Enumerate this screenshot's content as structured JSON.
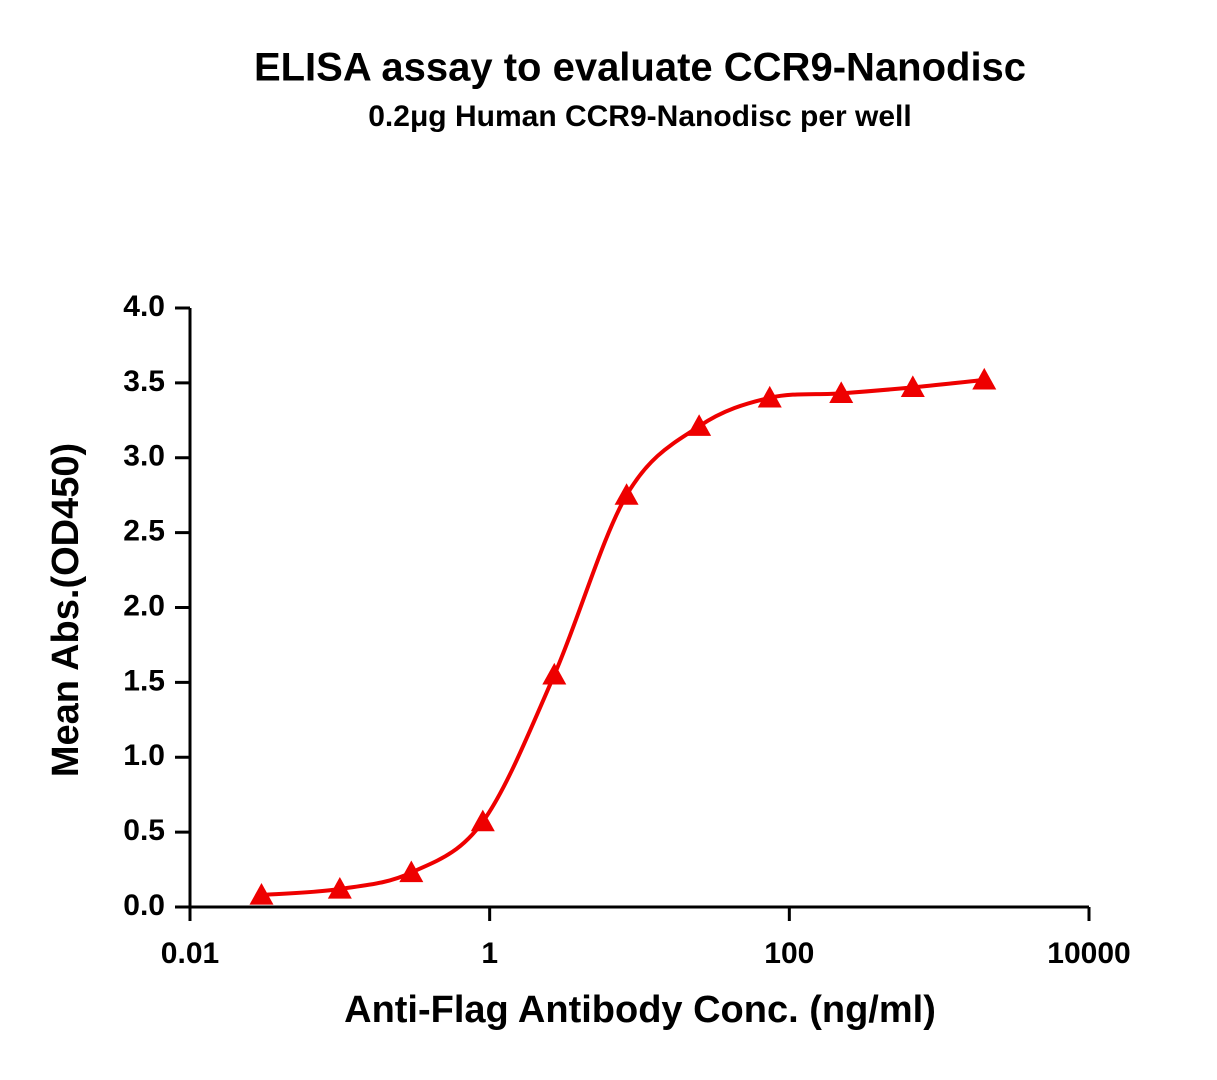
{
  "chart_data": {
    "type": "line",
    "title": "ELISA assay to evaluate CCR9-Nanodisc",
    "subtitle": "0.2μg Human CCR9-Nanodisc per well",
    "x_label": "Anti-Flag Antibody Conc. (ng/ml)",
    "y_label": "Mean Abs.(OD450)",
    "x_scale": "log",
    "x": [
      0.03,
      0.1,
      0.3,
      0.9,
      2.7,
      8.2,
      25,
      74,
      222,
      667,
      2000
    ],
    "series": [
      {
        "name": "CCR9-Nanodisc",
        "color": "#ee0000",
        "marker": "triangle",
        "values": [
          0.08,
          0.12,
          0.23,
          0.57,
          1.55,
          2.75,
          3.21,
          3.4,
          3.43,
          3.47,
          3.52
        ]
      }
    ],
    "xlim": [
      0.01,
      10000
    ],
    "xticks": [
      0.01,
      1,
      100,
      10000
    ],
    "ylim": [
      0,
      4
    ],
    "yticks": [
      {
        "value": 0,
        "label": "0.0"
      },
      0.5,
      {
        "value": 1,
        "label": "1.0"
      },
      1.5,
      {
        "value": 2,
        "label": "2.0"
      },
      2.5,
      {
        "value": 3,
        "label": "3.0"
      },
      3.5,
      {
        "value": 4,
        "label": "4.0"
      }
    ],
    "grid": false,
    "legend": false
  }
}
